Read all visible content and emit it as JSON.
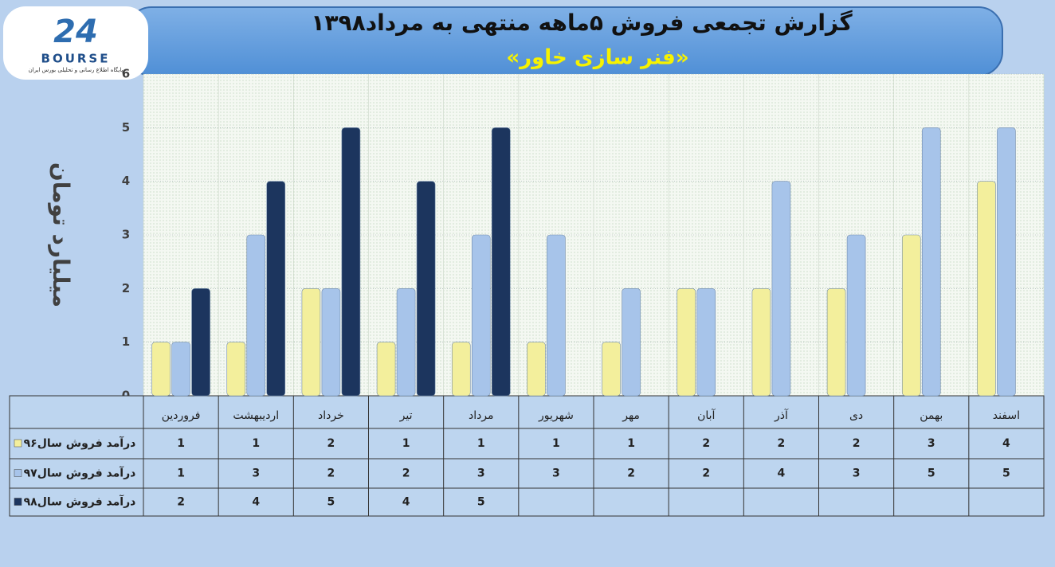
{
  "logo": {
    "number": "24",
    "name": "BOURSE",
    "tagline": "پایگاه اطلاع رسانی و تحلیلی بورس ایران"
  },
  "chart_data": {
    "type": "bar",
    "title": "گزارش تجمعی فروش ۵ماهه منتهی به مرداد۱۳۹۸",
    "subtitle": "«فنر سازی خاور»",
    "y_label": "میلیارد تومان",
    "categories": [
      "فروردین",
      "اردیبهشت",
      "خرداد",
      "تیر",
      "مرداد",
      "شهریور",
      "مهر",
      "آبان",
      "آذر",
      "دی",
      "بهمن",
      "اسفند"
    ],
    "series": [
      {
        "name": "درآمد فروش سال۹۶",
        "color": "#f3ef9c",
        "values": [
          1,
          1,
          2,
          1,
          1,
          1,
          1,
          2,
          2,
          2,
          3,
          4
        ]
      },
      {
        "name": "درآمد فروش سال۹۷",
        "color": "#a7c4ea",
        "values": [
          1,
          3,
          2,
          2,
          3,
          3,
          2,
          2,
          4,
          3,
          5,
          5
        ]
      },
      {
        "name": "درآمد فروش سال۹۸",
        "color": "#1c355e",
        "values": [
          2,
          4,
          5,
          4,
          5,
          null,
          null,
          null,
          null,
          null,
          null,
          null
        ]
      }
    ],
    "ylim": [
      0,
      6
    ],
    "yticks": [
      0,
      1,
      2,
      3,
      4,
      5,
      6
    ],
    "grid": true
  }
}
